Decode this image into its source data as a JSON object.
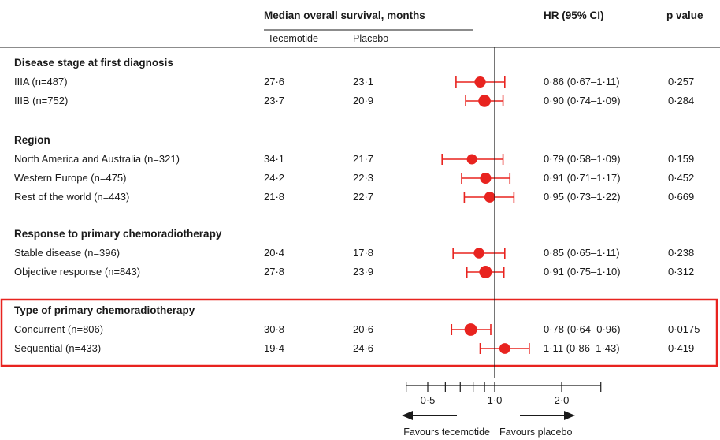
{
  "header": {
    "median_title": "Median overall survival, months",
    "col_tecemotide": "Tecemotide",
    "col_placebo": "Placebo",
    "hr_title": "HR (95% CI)",
    "p_title": "p value"
  },
  "chart_data": {
    "type": "forest",
    "reference_line": 1.0,
    "x_scale": "log",
    "xlim": [
      0.4,
      2.8
    ],
    "x_tick_labels": [
      "0·5",
      "1·0",
      "2·0"
    ],
    "x_tick_label_values": [
      0.5,
      1.0,
      2.0
    ],
    "x_minor_ticks": [
      0.4,
      0.5,
      0.6,
      0.7,
      0.8,
      0.9,
      1.0,
      2.0,
      3.0
    ],
    "direction_left": "Favours tecemotide",
    "direction_right": "Favours placebo",
    "marker_color": "#e8231f",
    "highlight_color": "#e8231f",
    "groups": [
      {
        "title": "Disease stage at first diagnosis",
        "rows": [
          {
            "label": "IIIA (n=487)",
            "tecemotide": "27·6",
            "placebo": "23·1",
            "hr_text": "0·86 (0·67–1·11)",
            "p": "0·257",
            "hr": 0.86,
            "lo": 0.67,
            "hi": 1.11,
            "weight": 487
          },
          {
            "label": "IIIB (n=752)",
            "tecemotide": "23·7",
            "placebo": "20·9",
            "hr_text": "0·90 (0·74–1·09)",
            "p": "0·284",
            "hr": 0.9,
            "lo": 0.74,
            "hi": 1.09,
            "weight": 752
          }
        ]
      },
      {
        "title": "Region",
        "rows": [
          {
            "label": "North America and Australia (n=321)",
            "tecemotide": "34·1",
            "placebo": "21·7",
            "hr_text": "0·79 (0·58–1·09)",
            "p": "0·159",
            "hr": 0.79,
            "lo": 0.58,
            "hi": 1.09,
            "weight": 321
          },
          {
            "label": "Western Europe (n=475)",
            "tecemotide": "24·2",
            "placebo": "22·3",
            "hr_text": "0·91 (0·71–1·17)",
            "p": "0·452",
            "hr": 0.91,
            "lo": 0.71,
            "hi": 1.17,
            "weight": 475
          },
          {
            "label": "Rest of the world (n=443)",
            "tecemotide": "21·8",
            "placebo": "22·7",
            "hr_text": "0·95 (0·73–1·22)",
            "p": "0·669",
            "hr": 0.95,
            "lo": 0.73,
            "hi": 1.22,
            "weight": 443
          }
        ]
      },
      {
        "title": "Response to primary chemoradiotherapy",
        "rows": [
          {
            "label": "Stable disease (n=396)",
            "tecemotide": "20·4",
            "placebo": "17·8",
            "hr_text": "0·85 (0·65–1·11)",
            "p": "0·238",
            "hr": 0.85,
            "lo": 0.65,
            "hi": 1.11,
            "weight": 396
          },
          {
            "label": "Objective response (n=843)",
            "tecemotide": "27·8",
            "placebo": "23·9",
            "hr_text": "0·91 (0·75–1·10)",
            "p": "0·312",
            "hr": 0.91,
            "lo": 0.75,
            "hi": 1.1,
            "weight": 843
          }
        ]
      },
      {
        "title": "Type of primary chemoradiotherapy",
        "highlighted": true,
        "rows": [
          {
            "label": "Concurrent (n=806)",
            "tecemotide": "30·8",
            "placebo": "20·6",
            "hr_text": "0·78 (0·64–0·96)",
            "p": "0·0175",
            "hr": 0.78,
            "lo": 0.64,
            "hi": 0.96,
            "weight": 806
          },
          {
            "label": "Sequential (n=433)",
            "tecemotide": "19·4",
            "placebo": "24·6",
            "hr_text": "1·11 (0·86–1·43)",
            "p": "0·419",
            "hr": 1.11,
            "lo": 0.86,
            "hi": 1.43,
            "weight": 433
          }
        ]
      }
    ]
  }
}
